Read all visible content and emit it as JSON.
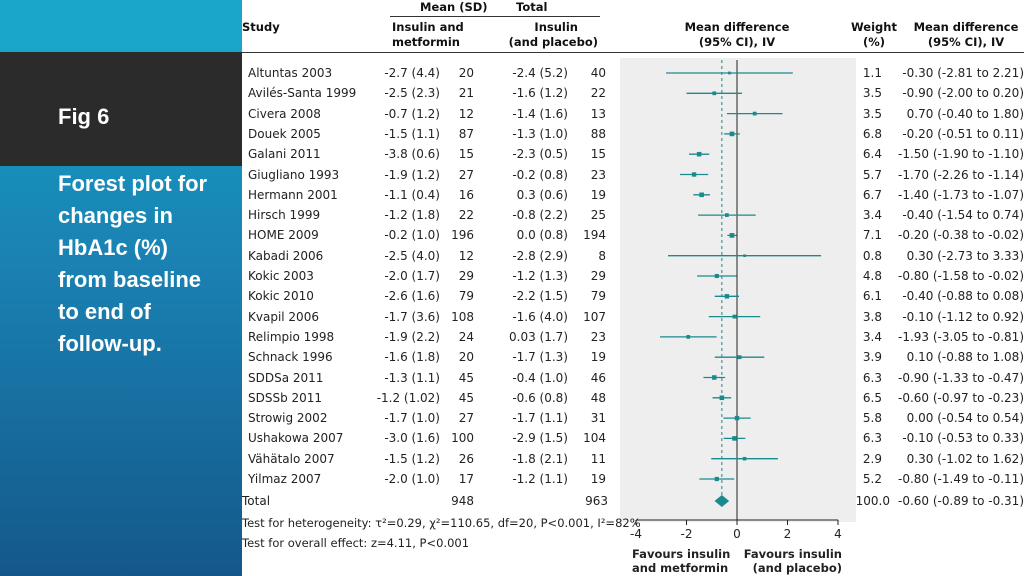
{
  "slide": {
    "fig_label": "Fig 6",
    "caption": " Forest plot for changes in HbA1c (%) from baseline to end of follow-up."
  },
  "headers": {
    "mean_sd": "Mean (SD)",
    "total": "Total",
    "study": "Study",
    "group1_line1": "Insulin and",
    "group1_line2": "metformin",
    "group2_line1": "Insulin",
    "group2_line2": "(and placebo)",
    "md_line1": "Mean difference",
    "md_line2": "(95% CI), IV",
    "weight_line1": "Weight",
    "weight_line2": "(%)",
    "md2_line1": "Mean difference",
    "md2_line2": "(95% CI), IV"
  },
  "footer": {
    "total_label": "Total",
    "total_n1": "948",
    "total_n2": "963",
    "total_weight": "100.0",
    "total_ci": "-0.60 (-0.89 to -0.31)",
    "heterogeneity": "Test for heterogeneity: τ²=0.29, χ²=110.65, df=20, P<0.001, I²=82%",
    "overall": "Test for overall effect: z=4.11, P<0.001",
    "favours_left_line1": "Favours insulin",
    "favours_left_line2": "and metformin",
    "favours_right_line1": "Favours insulin",
    "favours_right_line2": "(and placebo)"
  },
  "chart_data": {
    "type": "forest",
    "x_ticks": [
      "-4",
      "-2",
      "0",
      "2",
      "4"
    ],
    "xlim": [
      -4,
      4
    ],
    "pooled": {
      "md": -0.6,
      "lo": -0.89,
      "hi": -0.31
    },
    "studies": [
      {
        "study": "Altuntas 2003",
        "m1": "-2.7 (4.4)",
        "n1": "20",
        "m2": "-2.4 (5.2)",
        "n2": "40",
        "weight": "1.1",
        "ci": "-0.30 (-2.81 to 2.21)",
        "md": -0.3,
        "lo": -2.81,
        "hi": 2.21,
        "w": 1.1
      },
      {
        "study": "Avilés-Santa 1999",
        "m1": "-2.5 (2.3)",
        "n1": "21",
        "m2": "-1.6 (1.2)",
        "n2": "22",
        "weight": "3.5",
        "ci": "-0.90 (-2.00 to 0.20)",
        "md": -0.9,
        "lo": -2.0,
        "hi": 0.2,
        "w": 3.5
      },
      {
        "study": "Civera 2008",
        "m1": "-0.7 (1.2)",
        "n1": "12",
        "m2": "-1.4 (1.6)",
        "n2": "13",
        "weight": "3.5",
        "ci": "0.70 (-0.40 to 1.80)",
        "md": 0.7,
        "lo": -0.4,
        "hi": 1.8,
        "w": 3.5
      },
      {
        "study": "Douek 2005",
        "m1": "-1.5 (1.1)",
        "n1": "87",
        "m2": "-1.3 (1.0)",
        "n2": "88",
        "weight": "6.8",
        "ci": "-0.20 (-0.51 to 0.11)",
        "md": -0.2,
        "lo": -0.51,
        "hi": 0.11,
        "w": 6.8
      },
      {
        "study": "Galani 2011",
        "m1": "-3.8 (0.6)",
        "n1": "15",
        "m2": "-2.3 (0.5)",
        "n2": "15",
        "weight": "6.4",
        "ci": "-1.50 (-1.90 to -1.10)",
        "md": -1.5,
        "lo": -1.9,
        "hi": -1.1,
        "w": 6.4
      },
      {
        "study": "Giugliano 1993",
        "m1": "-1.9 (1.2)",
        "n1": "27",
        "m2": "-0.2 (0.8)",
        "n2": "23",
        "weight": "5.7",
        "ci": "-1.70 (-2.26 to -1.14)",
        "md": -1.7,
        "lo": -2.26,
        "hi": -1.14,
        "w": 5.7
      },
      {
        "study": "Hermann 2001",
        "m1": "-1.1 (0.4)",
        "n1": "16",
        "m2": "0.3 (0.6)",
        "n2": "19",
        "weight": "6.7",
        "ci": "-1.40 (-1.73 to -1.07)",
        "md": -1.4,
        "lo": -1.73,
        "hi": -1.07,
        "w": 6.7
      },
      {
        "study": "Hirsch 1999",
        "m1": "-1.2 (1.8)",
        "n1": "22",
        "m2": "-0.8 (2.2)",
        "n2": "25",
        "weight": "3.4",
        "ci": "-0.40 (-1.54 to 0.74)",
        "md": -0.4,
        "lo": -1.54,
        "hi": 0.74,
        "w": 3.4
      },
      {
        "study": "HOME 2009",
        "m1": "-0.2 (1.0)",
        "n1": "196",
        "m2": "0.0 (0.8)",
        "n2": "194",
        "weight": "7.1",
        "ci": "-0.20 (-0.38 to -0.02)",
        "md": -0.2,
        "lo": -0.38,
        "hi": -0.02,
        "w": 7.1
      },
      {
        "study": "Kabadi 2006",
        "m1": "-2.5 (4.0)",
        "n1": "12",
        "m2": "-2.8 (2.9)",
        "n2": "8",
        "weight": "0.8",
        "ci": "0.30 (-2.73 to 3.33)",
        "md": 0.3,
        "lo": -2.73,
        "hi": 3.33,
        "w": 0.8
      },
      {
        "study": "Kokic 2003",
        "m1": "-2.0 (1.7)",
        "n1": "29",
        "m2": "-1.2 (1.3)",
        "n2": "29",
        "weight": "4.8",
        "ci": "-0.80 (-1.58 to -0.02)",
        "md": -0.8,
        "lo": -1.58,
        "hi": -0.02,
        "w": 4.8
      },
      {
        "study": "Kokic 2010",
        "m1": "-2.6 (1.6)",
        "n1": "79",
        "m2": "-2.2 (1.5)",
        "n2": "79",
        "weight": "6.1",
        "ci": "-0.40 (-0.88 to 0.08)",
        "md": -0.4,
        "lo": -0.88,
        "hi": 0.08,
        "w": 6.1
      },
      {
        "study": "Kvapil 2006",
        "m1": "-1.7 (3.6)",
        "n1": "108",
        "m2": "-1.6 (4.0)",
        "n2": "107",
        "weight": "3.8",
        "ci": "-0.10 (-1.12 to 0.92)",
        "md": -0.1,
        "lo": -1.12,
        "hi": 0.92,
        "w": 3.8
      },
      {
        "study": "Relimpio 1998",
        "m1": "-1.9 (2.2)",
        "n1": "24",
        "m2": "0.03 (1.7)",
        "n2": "23",
        "weight": "3.4",
        "ci": "-1.93 (-3.05 to -0.81)",
        "md": -1.93,
        "lo": -3.05,
        "hi": -0.81,
        "w": 3.4
      },
      {
        "study": "Schnack 1996",
        "m1": "-1.6 (1.8)",
        "n1": "20",
        "m2": "-1.7 (1.3)",
        "n2": "19",
        "weight": "3.9",
        "ci": "0.10 (-0.88 to 1.08)",
        "md": 0.1,
        "lo": -0.88,
        "hi": 1.08,
        "w": 3.9
      },
      {
        "study": "SDDSa 2011",
        "m1": "-1.3 (1.1)",
        "n1": "45",
        "m2": "-0.4 (1.0)",
        "n2": "46",
        "weight": "6.3",
        "ci": "-0.90 (-1.33 to -0.47)",
        "md": -0.9,
        "lo": -1.33,
        "hi": -0.47,
        "w": 6.3
      },
      {
        "study": "SDSSb 2011",
        "m1": "-1.2 (1.02)",
        "n1": "45",
        "m2": "-0.6 (0.8)",
        "n2": "48",
        "weight": "6.5",
        "ci": "-0.60 (-0.97 to -0.23)",
        "md": -0.6,
        "lo": -0.97,
        "hi": -0.23,
        "w": 6.5
      },
      {
        "study": "Strowig 2002",
        "m1": "-1.7 (1.0)",
        "n1": "27",
        "m2": "-1.7 (1.1)",
        "n2": "31",
        "weight": "5.8",
        "ci": "0.00 (-0.54 to 0.54)",
        "md": 0.0,
        "lo": -0.54,
        "hi": 0.54,
        "w": 5.8
      },
      {
        "study": "Ushakowa 2007",
        "m1": "-3.0 (1.6)",
        "n1": "100",
        "m2": "-2.9 (1.5)",
        "n2": "104",
        "weight": "6.3",
        "ci": "-0.10 (-0.53 to 0.33)",
        "md": -0.1,
        "lo": -0.53,
        "hi": 0.33,
        "w": 6.3
      },
      {
        "study": "Vähätalo 2007",
        "m1": "-1.5 (1.2)",
        "n1": "26",
        "m2": "-1.8 (2.1)",
        "n2": "11",
        "weight": "2.9",
        "ci": "0.30 (-1.02 to 1.62)",
        "md": 0.3,
        "lo": -1.02,
        "hi": 1.62,
        "w": 2.9
      },
      {
        "study": "Yilmaz 2007",
        "m1": "-2.0 (1.0)",
        "n1": "17",
        "m2": "-1.2 (1.1)",
        "n2": "19",
        "weight": "5.2",
        "ci": "-0.80 (-1.49 to -0.11)",
        "md": -0.8,
        "lo": -1.49,
        "hi": -0.11,
        "w": 5.2
      }
    ]
  },
  "colors": {
    "accent": "#1b8a8c",
    "panel": "#eeeeee"
  }
}
